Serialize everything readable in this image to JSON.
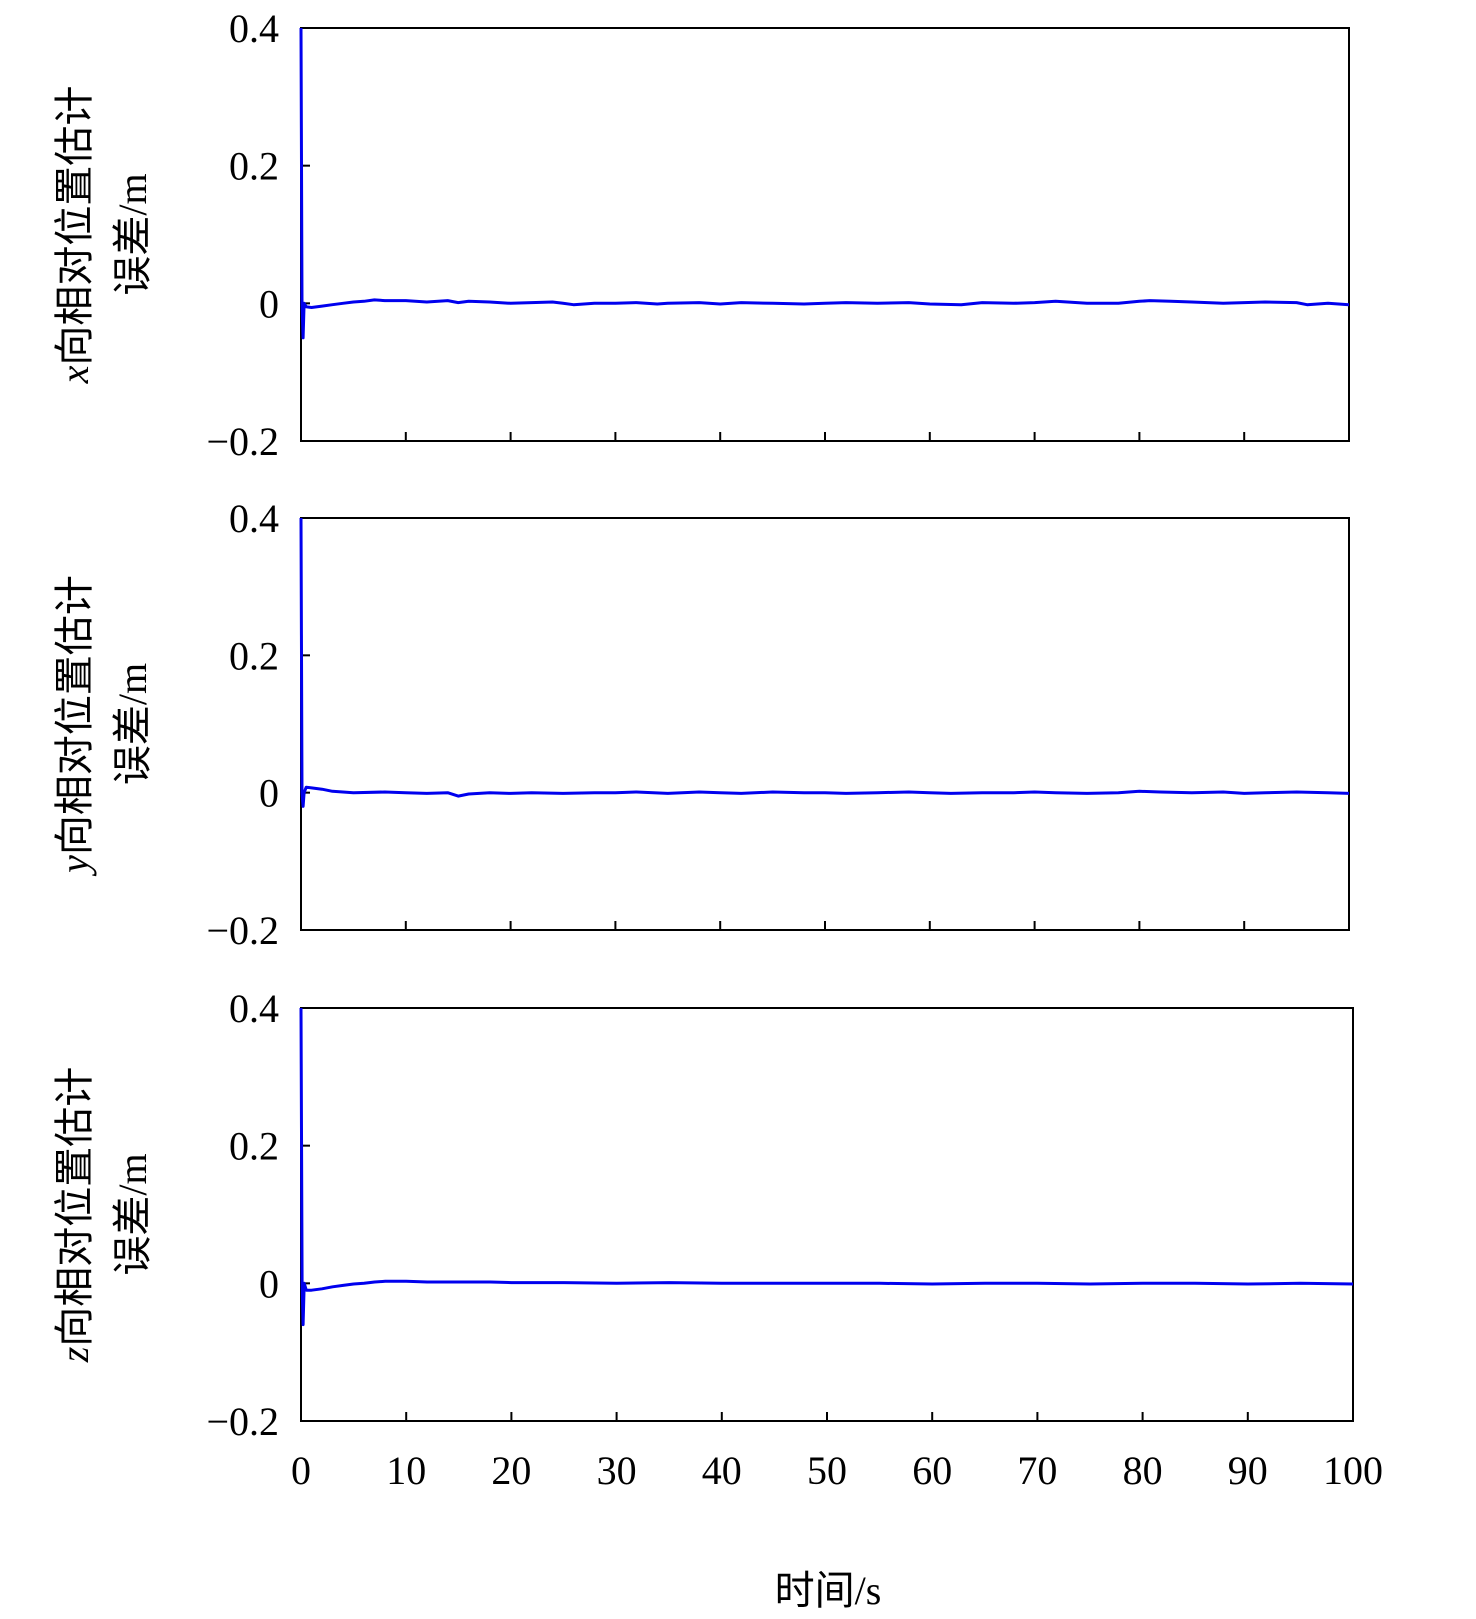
{
  "chart_data": [
    {
      "type": "line",
      "ylabel_var": "x",
      "ylabel_line1": "向相对位置估计",
      "ylabel_line2": "误差/m",
      "xlim": [
        0,
        100
      ],
      "ylim": [
        -0.2,
        0.4
      ],
      "yticks": [
        -0.2,
        0,
        0.2,
        0.4
      ],
      "ytick_labels": [
        "−0.2",
        "0",
        "0.2",
        "0.4"
      ],
      "xticks": [
        0,
        10,
        20,
        30,
        40,
        50,
        60,
        70,
        80,
        90,
        100
      ],
      "series": [
        {
          "color": "#0000ee",
          "x": [
            0,
            0.1,
            0.2,
            0.3,
            0.5,
            1,
            2,
            3,
            4,
            5,
            6,
            7,
            8,
            10,
            12,
            14,
            15,
            16,
            18,
            20,
            22,
            24,
            25,
            26,
            28,
            30,
            32,
            34,
            35,
            38,
            40,
            42,
            45,
            48,
            50,
            52,
            55,
            58,
            60,
            63,
            65,
            68,
            70,
            72,
            75,
            78,
            80,
            81,
            83,
            85,
            88,
            90,
            92,
            95,
            96,
            98,
            100
          ],
          "values": [
            0.4,
            0.0,
            -0.05,
            0.0,
            -0.005,
            -0.006,
            -0.004,
            -0.002,
            0.0,
            0.002,
            0.003,
            0.005,
            0.004,
            0.004,
            0.002,
            0.004,
            0.001,
            0.003,
            0.002,
            0.0,
            0.001,
            0.002,
            0.0,
            -0.002,
            0.0,
            0.0,
            0.001,
            -0.001,
            0.0,
            0.001,
            -0.001,
            0.001,
            0.0,
            -0.001,
            0.0,
            0.001,
            0.0,
            0.001,
            -0.001,
            -0.002,
            0.001,
            0.0,
            0.001,
            0.003,
            0.0,
            0.0,
            0.003,
            0.004,
            0.003,
            0.002,
            0.0,
            0.001,
            0.002,
            0.001,
            -0.002,
            0.0,
            -0.002
          ]
        }
      ]
    },
    {
      "type": "line",
      "ylabel_var": "y",
      "ylabel_line1": "向相对位置估计",
      "ylabel_line2": "误差/m",
      "xlim": [
        0,
        100
      ],
      "ylim": [
        -0.2,
        0.4
      ],
      "yticks": [
        -0.2,
        0,
        0.2,
        0.4
      ],
      "ytick_labels": [
        "−0.2",
        "0",
        "0.2",
        "0.4"
      ],
      "xticks": [
        0,
        10,
        20,
        30,
        40,
        50,
        60,
        70,
        80,
        90,
        100
      ],
      "series": [
        {
          "color": "#0000ee",
          "x": [
            0,
            0.1,
            0.2,
            0.3,
            0.5,
            1,
            2,
            3,
            5,
            8,
            10,
            12,
            14,
            15,
            16,
            18,
            20,
            22,
            25,
            28,
            30,
            32,
            35,
            38,
            40,
            42,
            45,
            48,
            50,
            52,
            55,
            58,
            60,
            62,
            65,
            68,
            70,
            72,
            75,
            78,
            80,
            82,
            85,
            88,
            90,
            92,
            95,
            98,
            100
          ],
          "values": [
            0.4,
            0.0,
            -0.02,
            0.0,
            0.008,
            0.007,
            0.005,
            0.002,
            0.0,
            0.001,
            0.0,
            -0.001,
            0.0,
            -0.005,
            -0.002,
            0.0,
            -0.001,
            0.0,
            -0.001,
            0.0,
            0.0,
            0.001,
            -0.001,
            0.001,
            0.0,
            -0.001,
            0.001,
            0.0,
            0.0,
            -0.001,
            0.0,
            0.001,
            0.0,
            -0.001,
            0.0,
            0.0,
            0.001,
            0.0,
            -0.001,
            0.0,
            0.002,
            0.001,
            0.0,
            0.001,
            -0.001,
            0.0,
            0.001,
            0.0,
            -0.001
          ]
        }
      ]
    },
    {
      "type": "line",
      "ylabel_var": "z",
      "ylabel_line1": "向相对位置估计",
      "ylabel_line2": "误差/m",
      "xlim": [
        0,
        100
      ],
      "ylim": [
        -0.2,
        0.4
      ],
      "yticks": [
        -0.2,
        0,
        0.2,
        0.4
      ],
      "ytick_labels": [
        "−0.2",
        "0",
        "0.2",
        "0.4"
      ],
      "xticks": [
        0,
        10,
        20,
        30,
        40,
        50,
        60,
        70,
        80,
        90,
        100
      ],
      "xtick_labels": [
        "0",
        "10",
        "20",
        "30",
        "40",
        "50",
        "60",
        "70",
        "80",
        "90",
        "100"
      ],
      "xlabel": "时间/s",
      "series": [
        {
          "color": "#0000ee",
          "x": [
            0,
            0.1,
            0.2,
            0.3,
            0.5,
            1,
            2,
            3,
            4,
            5,
            6,
            7,
            8,
            10,
            12,
            15,
            18,
            20,
            25,
            30,
            35,
            40,
            45,
            50,
            55,
            60,
            65,
            70,
            75,
            80,
            85,
            90,
            95,
            100
          ],
          "values": [
            0.4,
            0.0,
            -0.06,
            0.0,
            -0.01,
            -0.01,
            -0.008,
            -0.005,
            -0.003,
            -0.001,
            0.0,
            0.002,
            0.003,
            0.003,
            0.002,
            0.002,
            0.002,
            0.001,
            0.001,
            0.0,
            0.001,
            0.0,
            0.0,
            0.0,
            0.0,
            -0.001,
            0.0,
            0.0,
            -0.001,
            0.0,
            0.0,
            -0.001,
            0.0,
            -0.001
          ]
        }
      ]
    }
  ]
}
